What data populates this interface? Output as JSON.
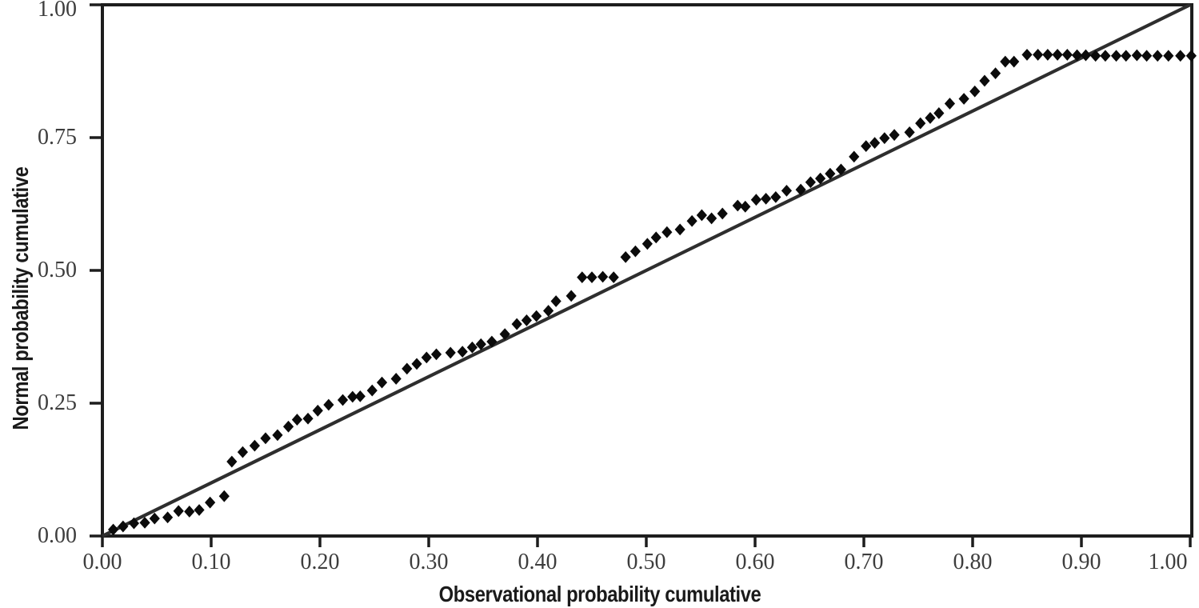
{
  "figure": {
    "kind": "probability-probability scatter plot",
    "background_color": "#ffffff",
    "border_color": "#1d1d1d",
    "tick_label_color": "#3d3d3d",
    "axis_title_color": "#1a1a1a"
  },
  "chart_data": {
    "type": "scatter",
    "title": "",
    "xlabel": "Observational probability cumulative",
    "ylabel": "Normal probability cumulative",
    "xlim": [
      0,
      1.005
    ],
    "ylim": [
      0,
      1.0
    ],
    "grid": false,
    "legend": "none",
    "x_ticks": {
      "values": [
        0,
        0.1,
        0.2,
        0.3,
        0.4,
        0.5,
        0.6,
        0.7,
        0.8,
        0.9,
        1.0
      ],
      "labels": [
        "0.00",
        "0.10",
        "0.20",
        "0.30",
        "0.40",
        "0.50",
        "0.60",
        "0.70",
        "0.80",
        "0.90",
        "1.00"
      ]
    },
    "y_ticks": {
      "values": [
        0,
        0.25,
        0.5,
        0.75,
        1.0
      ],
      "labels": [
        "0.00",
        "0.25",
        "0.50",
        "0.75",
        "1.00"
      ]
    },
    "reference_line": {
      "name": "identity line y = x",
      "from": [
        0,
        0
      ],
      "to": [
        1.0,
        1.0
      ],
      "color": "#2e2e2e",
      "width": 4.2
    },
    "series": [
      {
        "name": "observed vs normal cumulative probability",
        "marker": "diamond",
        "color": "#0b0b0b",
        "points": [
          [
            0.01,
            0.012
          ],
          [
            0.019,
            0.018
          ],
          [
            0.029,
            0.024
          ],
          [
            0.039,
            0.025
          ],
          [
            0.048,
            0.033
          ],
          [
            0.06,
            0.035
          ],
          [
            0.07,
            0.047
          ],
          [
            0.08,
            0.046
          ],
          [
            0.089,
            0.049
          ],
          [
            0.099,
            0.063
          ],
          [
            0.112,
            0.075
          ],
          [
            0.119,
            0.14
          ],
          [
            0.129,
            0.158
          ],
          [
            0.14,
            0.17
          ],
          [
            0.15,
            0.184
          ],
          [
            0.161,
            0.19
          ],
          [
            0.171,
            0.206
          ],
          [
            0.179,
            0.219
          ],
          [
            0.189,
            0.221
          ],
          [
            0.198,
            0.236
          ],
          [
            0.208,
            0.247
          ],
          [
            0.221,
            0.256
          ],
          [
            0.23,
            0.262
          ],
          [
            0.237,
            0.263
          ],
          [
            0.248,
            0.274
          ],
          [
            0.257,
            0.289
          ],
          [
            0.27,
            0.296
          ],
          [
            0.28,
            0.315
          ],
          [
            0.289,
            0.324
          ],
          [
            0.298,
            0.336
          ],
          [
            0.307,
            0.342
          ],
          [
            0.32,
            0.345
          ],
          [
            0.331,
            0.347
          ],
          [
            0.34,
            0.355
          ],
          [
            0.348,
            0.361
          ],
          [
            0.358,
            0.366
          ],
          [
            0.37,
            0.38
          ],
          [
            0.381,
            0.399
          ],
          [
            0.39,
            0.406
          ],
          [
            0.399,
            0.414
          ],
          [
            0.41,
            0.424
          ],
          [
            0.417,
            0.442
          ],
          [
            0.431,
            0.452
          ],
          [
            0.441,
            0.487
          ],
          [
            0.45,
            0.487
          ],
          [
            0.46,
            0.488
          ],
          [
            0.47,
            0.487
          ],
          [
            0.481,
            0.525
          ],
          [
            0.49,
            0.536
          ],
          [
            0.501,
            0.55
          ],
          [
            0.509,
            0.562
          ],
          [
            0.519,
            0.572
          ],
          [
            0.531,
            0.577
          ],
          [
            0.542,
            0.593
          ],
          [
            0.551,
            0.604
          ],
          [
            0.56,
            0.598
          ],
          [
            0.57,
            0.607
          ],
          [
            0.584,
            0.622
          ],
          [
            0.591,
            0.62
          ],
          [
            0.601,
            0.633
          ],
          [
            0.61,
            0.635
          ],
          [
            0.619,
            0.638
          ],
          [
            0.629,
            0.65
          ],
          [
            0.642,
            0.652
          ],
          [
            0.651,
            0.666
          ],
          [
            0.66,
            0.673
          ],
          [
            0.669,
            0.682
          ],
          [
            0.679,
            0.69
          ],
          [
            0.691,
            0.714
          ],
          [
            0.702,
            0.734
          ],
          [
            0.71,
            0.74
          ],
          [
            0.719,
            0.749
          ],
          [
            0.728,
            0.755
          ],
          [
            0.742,
            0.76
          ],
          [
            0.752,
            0.777
          ],
          [
            0.761,
            0.787
          ],
          [
            0.769,
            0.796
          ],
          [
            0.779,
            0.814
          ],
          [
            0.792,
            0.823
          ],
          [
            0.802,
            0.837
          ],
          [
            0.811,
            0.857
          ],
          [
            0.821,
            0.871
          ],
          [
            0.83,
            0.893
          ],
          [
            0.838,
            0.893
          ],
          [
            0.85,
            0.906
          ],
          [
            0.86,
            0.906
          ],
          [
            0.869,
            0.906
          ],
          [
            0.878,
            0.906
          ],
          [
            0.887,
            0.906
          ],
          [
            0.896,
            0.905
          ],
          [
            0.904,
            0.905
          ],
          [
            0.913,
            0.904
          ],
          [
            0.922,
            0.904
          ],
          [
            0.932,
            0.904
          ],
          [
            0.941,
            0.904
          ],
          [
            0.951,
            0.905
          ],
          [
            0.96,
            0.904
          ],
          [
            0.97,
            0.904
          ],
          [
            0.98,
            0.904
          ],
          [
            0.991,
            0.904
          ],
          [
            1.001,
            0.904
          ]
        ]
      }
    ]
  }
}
